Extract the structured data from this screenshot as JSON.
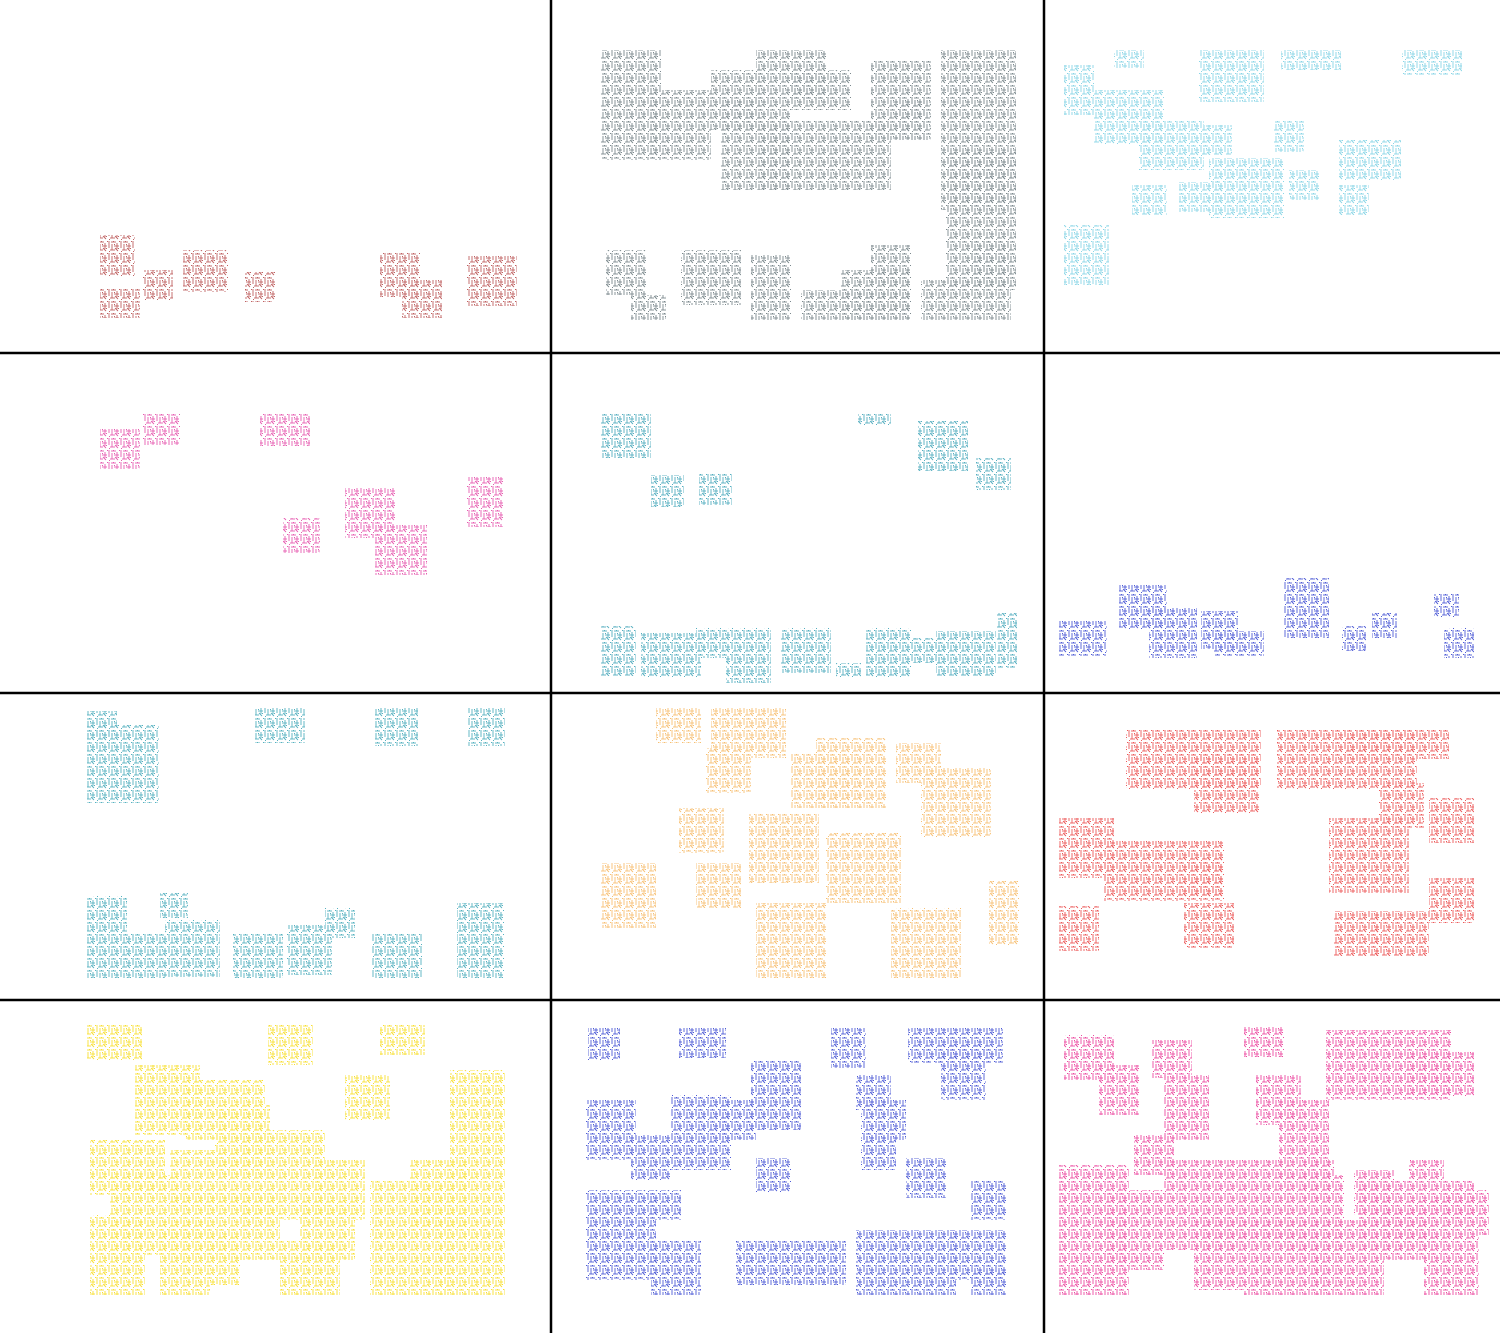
{
  "panels": [
    {
      "color": "#b03a3a"
    },
    {
      "color": "#5b6b71"
    },
    {
      "color": "#6ccbe0"
    },
    {
      "color": "#e0359e"
    },
    {
      "color": "#2a9ab0"
    },
    {
      "color": "#2233cc"
    },
    {
      "color": "#2b9db0"
    },
    {
      "color": "#f5b050"
    },
    {
      "color": "#e83030"
    },
    {
      "color": "#f7d800"
    },
    {
      "color": "#2233cc"
    },
    {
      "color": "#e8208a"
    }
  ]
}
